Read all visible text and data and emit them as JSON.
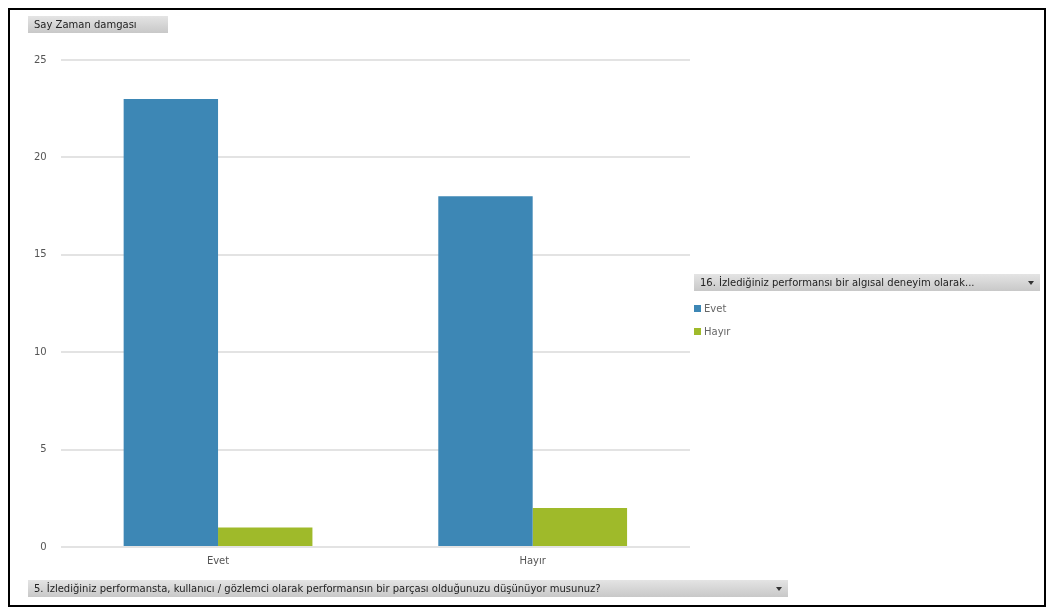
{
  "chart_data": {
    "type": "bar",
    "ylabel": "Say Zaman damgası",
    "xlabel": "5. İzlediğiniz performansta, kullanıcı / gözlemci olarak performansın bir parçası olduğunuzu düşünüyor musunuz?",
    "legend_title": "16. İzlediğiniz performansı bir algısal deneyim olarak...",
    "categories": [
      "Evet",
      "Hayır"
    ],
    "series": [
      {
        "name": "Evet",
        "color": "#3d87b5",
        "values": [
          23,
          18
        ]
      },
      {
        "name": "Hayır",
        "color": "#9fba2a",
        "values": [
          1,
          2
        ]
      }
    ],
    "ylim": [
      0,
      25
    ],
    "yticks": [
      0,
      5,
      10,
      15,
      20,
      25
    ],
    "grid": "y",
    "legend": "right"
  }
}
